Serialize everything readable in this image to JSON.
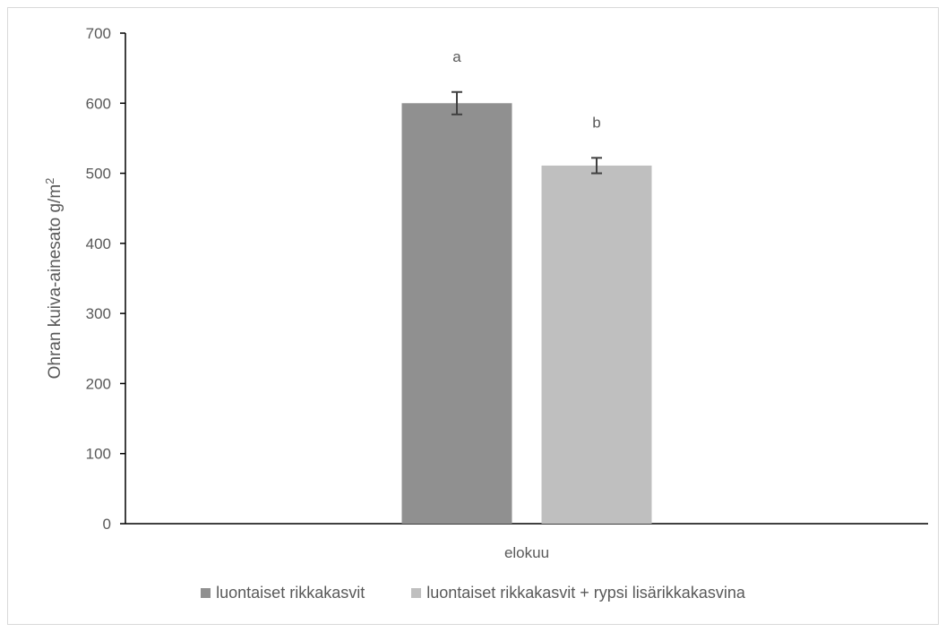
{
  "chart_data": {
    "type": "bar",
    "categories": [
      "elokuu"
    ],
    "series": [
      {
        "name": "luontaiset rikkakasvit",
        "values": [
          600
        ],
        "error": [
          16
        ],
        "data_label": "a",
        "color": "#909090"
      },
      {
        "name": "luontaiset rikkakasvit + rypsi lisärikkakasvina",
        "values": [
          511
        ],
        "error": [
          11
        ],
        "data_label": "b",
        "color": "#bfbfbf"
      }
    ],
    "ylabel": "Ohran kuiva-ainesato g/m",
    "ylabel_superscript": "2",
    "ylim": [
      0,
      700
    ],
    "yticks": [
      0,
      100,
      200,
      300,
      400,
      500,
      600,
      700
    ],
    "grid": false,
    "legend_position": "bottom"
  }
}
